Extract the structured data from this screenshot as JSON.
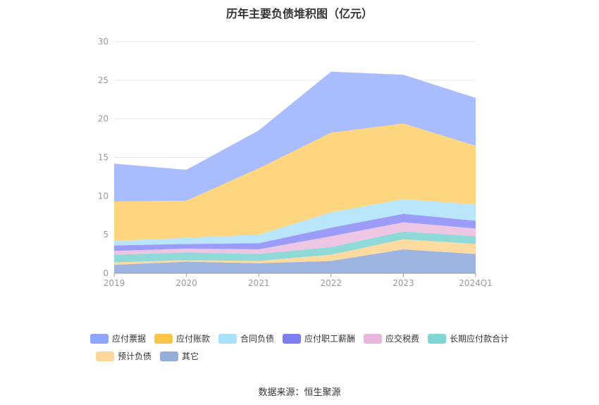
{
  "title": "历年主要负债堆积图（亿元）",
  "source": "数据来源：恒生聚源",
  "chart_data": {
    "type": "area",
    "stacked": true,
    "categories": [
      "2019",
      "2020",
      "2021",
      "2022",
      "2023",
      "2024Q1"
    ],
    "ylim": [
      0,
      30
    ],
    "yticks": [
      0,
      5,
      10,
      15,
      20,
      25,
      30
    ],
    "grid": true,
    "legend_position": "bottom",
    "series": [
      {
        "name": "其它",
        "color": "#9db4e0",
        "values": [
          1.1,
          1.5,
          1.3,
          1.6,
          3.1,
          2.5
        ]
      },
      {
        "name": "预计负债",
        "color": "#fddba0",
        "values": [
          0.3,
          0.2,
          0.3,
          0.8,
          1.3,
          1.3
        ]
      },
      {
        "name": "长期应付款合计",
        "color": "#8fdad8",
        "values": [
          1.0,
          1.0,
          0.9,
          1.0,
          1.0,
          1.0
        ]
      },
      {
        "name": "应交税费",
        "color": "#ecc6e3",
        "values": [
          0.5,
          0.5,
          0.6,
          1.4,
          1.2,
          1.0
        ]
      },
      {
        "name": "应付职工薪酬",
        "color": "#9b9cf7",
        "values": [
          0.7,
          0.6,
          0.8,
          1.1,
          1.1,
          1.0
        ]
      },
      {
        "name": "合同负债",
        "color": "#b9e6fb",
        "values": [
          0.6,
          0.8,
          1.1,
          2.0,
          1.9,
          2.1
        ]
      },
      {
        "name": "应付账款",
        "color": "#fed67f",
        "values": [
          5.1,
          4.8,
          8.6,
          10.3,
          9.8,
          7.6
        ]
      },
      {
        "name": "应付票据",
        "color": "#a9bcfd",
        "values": [
          4.9,
          4.0,
          4.9,
          7.9,
          6.3,
          6.2
        ]
      }
    ]
  },
  "legend": [
    {
      "name": "应付票据",
      "color": "#8ea5fb"
    },
    {
      "name": "应付账款",
      "color": "#fec54b"
    },
    {
      "name": "合同负债",
      "color": "#a8e1fa"
    },
    {
      "name": "应付职工薪酬",
      "color": "#7d7ef2"
    },
    {
      "name": "应交税费",
      "color": "#eab7dc"
    },
    {
      "name": "长期应付款合计",
      "color": "#80d6d4"
    },
    {
      "name": "预计负债",
      "color": "#fdd89a"
    },
    {
      "name": "其它",
      "color": "#94add9"
    }
  ]
}
